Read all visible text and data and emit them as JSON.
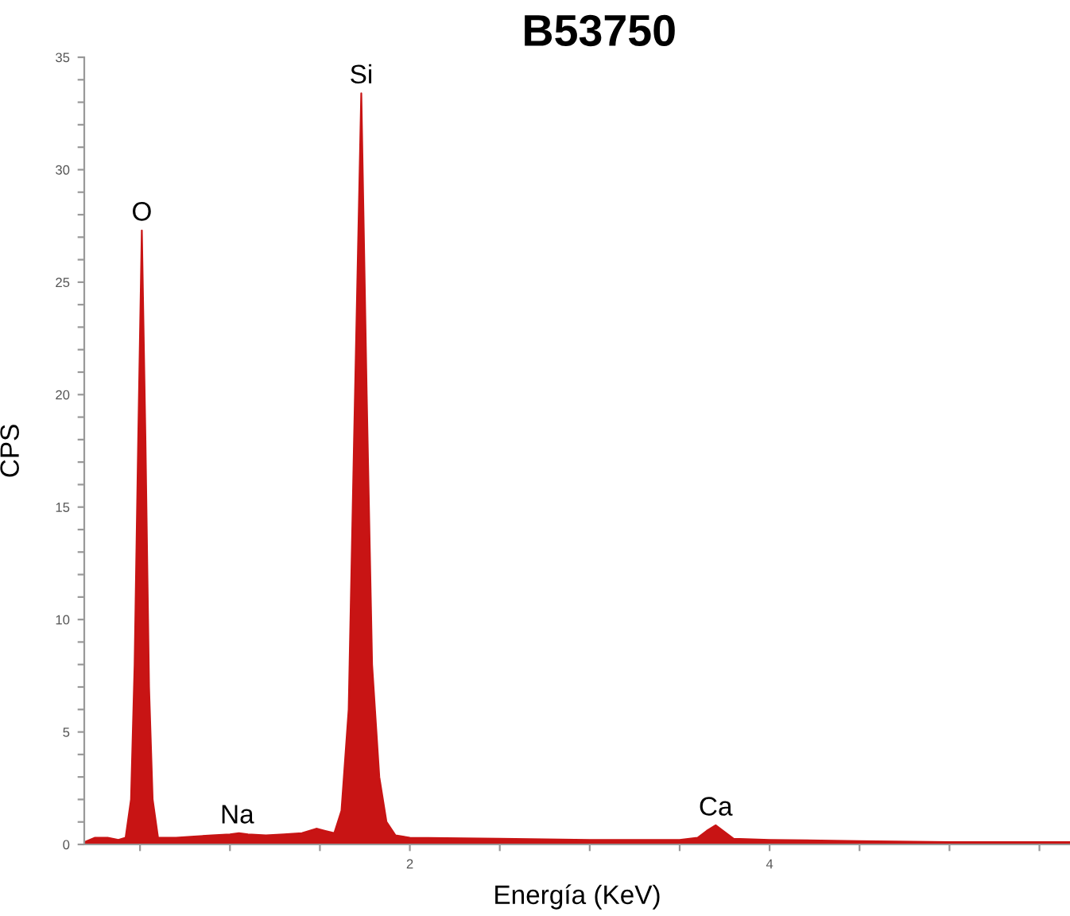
{
  "chart_data": {
    "type": "area",
    "title": "B53750",
    "xlabel": "Energía (KeV)",
    "ylabel": "CPS",
    "color": "#c81414",
    "grid": false,
    "x": [
      0.19,
      0.25,
      0.32,
      0.38,
      0.42,
      0.45,
      0.47,
      0.49,
      0.51,
      0.53,
      0.55,
      0.57,
      0.6,
      0.7,
      0.8,
      0.9,
      1.0,
      1.05,
      1.1,
      1.2,
      1.3,
      1.4,
      1.48,
      1.53,
      1.58,
      1.62,
      1.66,
      1.69,
      1.73,
      1.76,
      1.79,
      1.83,
      1.87,
      1.92,
      2.0,
      2.5,
      3.0,
      3.5,
      3.6,
      3.65,
      3.7,
      3.75,
      3.8,
      4.0,
      4.5,
      5.0,
      5.67
    ],
    "values": [
      0.1,
      0.3,
      0.3,
      0.2,
      0.3,
      2,
      8,
      18,
      27.3,
      18,
      7,
      2,
      0.3,
      0.3,
      0.35,
      0.4,
      0.45,
      0.5,
      0.45,
      0.4,
      0.45,
      0.5,
      0.7,
      0.6,
      0.5,
      1.5,
      6,
      18,
      33.4,
      20,
      8,
      3,
      1,
      0.4,
      0.3,
      0.25,
      0.2,
      0.2,
      0.3,
      0.6,
      0.85,
      0.55,
      0.25,
      0.2,
      0.15,
      0.1,
      0.1
    ],
    "xlim": [
      0.19,
      5.67
    ],
    "xticks": [
      {
        "value": 0.5,
        "label": null
      },
      {
        "value": 1,
        "label": null
      },
      {
        "value": 1.5,
        "label": null
      },
      2,
      {
        "value": 2.5,
        "label": null
      },
      {
        "value": 3,
        "label": null
      },
      {
        "value": 3.5,
        "label": null
      },
      4,
      {
        "value": 4.5,
        "label": null
      },
      {
        "value": 5,
        "label": null
      },
      {
        "value": 5.5,
        "label": null
      }
    ],
    "ylim": [
      0,
      35
    ],
    "yticks": [
      0,
      {
        "value": 1,
        "label": null
      },
      {
        "value": 2,
        "label": null
      },
      {
        "value": 3,
        "label": null
      },
      {
        "value": 4,
        "label": null
      },
      5,
      {
        "value": 6,
        "label": null
      },
      {
        "value": 7,
        "label": null
      },
      {
        "value": 8,
        "label": null
      },
      {
        "value": 9,
        "label": null
      },
      10,
      {
        "value": 11,
        "label": null
      },
      {
        "value": 12,
        "label": null
      },
      {
        "value": 13,
        "label": null
      },
      {
        "value": 14,
        "label": null
      },
      15,
      {
        "value": 16,
        "label": null
      },
      {
        "value": 17,
        "label": null
      },
      {
        "value": 18,
        "label": null
      },
      {
        "value": 19,
        "label": null
      },
      20,
      {
        "value": 21,
        "label": null
      },
      {
        "value": 22,
        "label": null
      },
      {
        "value": 23,
        "label": null
      },
      {
        "value": 24,
        "label": null
      },
      25,
      {
        "value": 26,
        "label": null
      },
      {
        "value": 27,
        "label": null
      },
      {
        "value": 28,
        "label": null
      },
      {
        "value": 29,
        "label": null
      },
      30,
      {
        "value": 31,
        "label": null
      },
      {
        "value": 32,
        "label": null
      },
      {
        "value": 33,
        "label": null
      },
      {
        "value": 34,
        "label": null
      },
      35
    ],
    "annotations": [
      {
        "text": "O",
        "x": 0.51,
        "y": 27.3
      },
      {
        "text": "Na",
        "x": 1.04,
        "y": 0.5
      },
      {
        "text": "Si",
        "x": 1.73,
        "y": 33.4
      },
      {
        "text": "Ca",
        "x": 3.7,
        "y": 0.85
      }
    ]
  }
}
